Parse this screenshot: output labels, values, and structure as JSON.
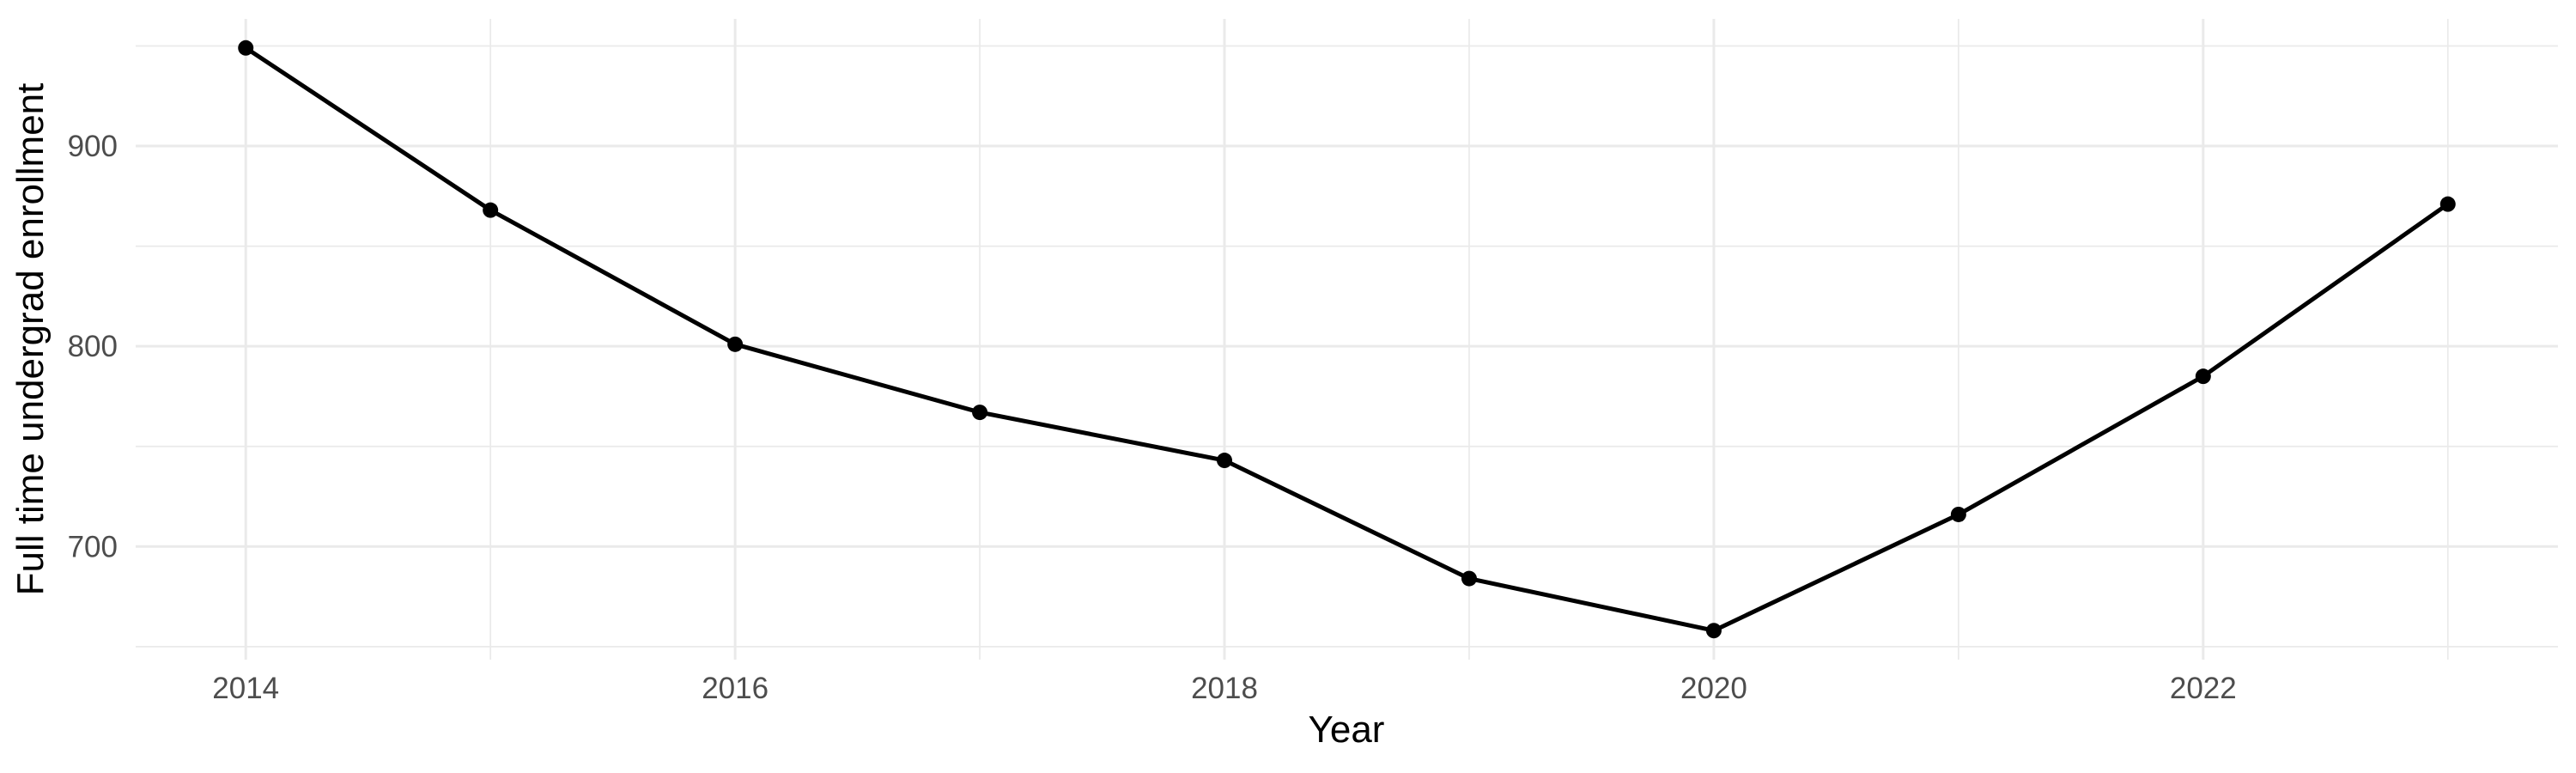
{
  "chart_data": {
    "type": "line",
    "title": "",
    "xlabel": "Year",
    "ylabel": "Full time undergrad enrollment",
    "x": [
      2014,
      2015,
      2016,
      2017,
      2018,
      2019,
      2020,
      2021,
      2022,
      2023
    ],
    "values": [
      949,
      868,
      801,
      767,
      743,
      684,
      658,
      716,
      785,
      871
    ],
    "x_ticks_major": [
      2014,
      2016,
      2018,
      2020,
      2022
    ],
    "x_ticks_minor": [
      2015,
      2017,
      2019,
      2021,
      2023
    ],
    "y_ticks_major": [
      700,
      800,
      900
    ],
    "y_ticks_minor": [
      650,
      750,
      850,
      950
    ],
    "xlim": [
      2013.55,
      2023.45
    ],
    "ylim": [
      643.5,
      963.5
    ],
    "grid": "major+minor",
    "legend": "none",
    "colors": {
      "line": "#000000",
      "point": "#000000",
      "grid": "#EAEAEA",
      "tick_label": "#4D4D4D",
      "axis_title": "#000000",
      "background": "#FFFFFF"
    }
  }
}
